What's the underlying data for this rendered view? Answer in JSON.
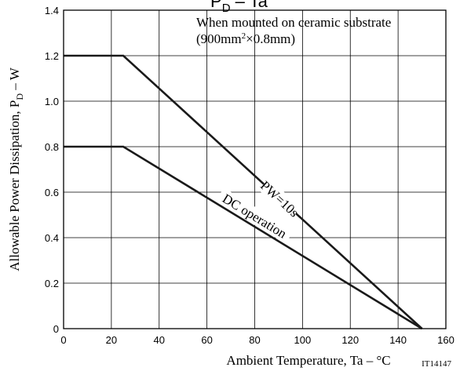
{
  "chart_data": {
    "type": "line",
    "title": "Pᴅ – Ta",
    "title_main": "P",
    "title_sub": "D",
    "title_rest": " – Ta",
    "xlabel": "Ambient Temperature, Ta  –  °C",
    "ylabel_main": "Allowable Power Dissipation, P",
    "ylabel_sub": "D",
    "ylabel_rest": "  –  W",
    "xlim": [
      0,
      160
    ],
    "ylim": [
      0,
      1.4
    ],
    "x_ticks": [
      0,
      20,
      40,
      60,
      80,
      100,
      120,
      140,
      160
    ],
    "y_ticks": [
      0,
      0.2,
      0.4,
      0.6,
      0.8,
      1.0,
      1.2,
      1.4
    ],
    "x_tick_labels": [
      "0",
      "20",
      "40",
      "60",
      "80",
      "100",
      "120",
      "140",
      "160"
    ],
    "y_tick_labels": [
      "0",
      "0.2",
      "0.4",
      "0.6",
      "0.8",
      "1.0",
      "1.2",
      "1.4"
    ],
    "grid": true,
    "series": [
      {
        "name": "PW=10s",
        "x": [
          0,
          25,
          150
        ],
        "y": [
          1.2,
          1.2,
          0
        ]
      },
      {
        "name": "DC operation",
        "x": [
          0,
          25,
          150
        ],
        "y": [
          0.8,
          0.8,
          0
        ]
      }
    ],
    "annotations": {
      "condition_line1": "When mounted on ceramic substrate",
      "condition_line2_pre": "(900mm",
      "condition_line2_sup": "2",
      "condition_line2_post": "×0.8mm)"
    },
    "doc_id": "IT14147"
  }
}
